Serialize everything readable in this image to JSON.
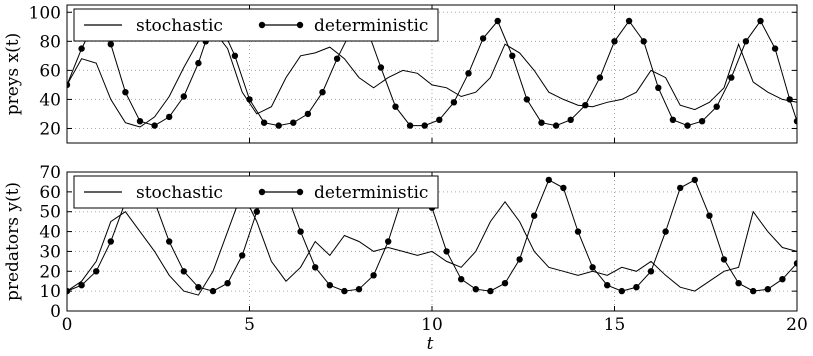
{
  "chart_data": [
    {
      "type": "line",
      "ylabel": "preys x(t)",
      "xlabel": "",
      "xlim": [
        0,
        20
      ],
      "ylim": [
        10,
        105
      ],
      "yticks": [
        20,
        40,
        60,
        80,
        100
      ],
      "xticks": [
        0,
        5,
        10,
        15,
        20
      ],
      "show_xtick_labels": false,
      "grid": "dotted",
      "legend": {
        "placement": "top",
        "entries": [
          "stochastic",
          "deterministic"
        ]
      },
      "series": [
        {
          "name": "stochastic",
          "marker": "none",
          "x": [
            0,
            0.4,
            0.8,
            1.2,
            1.6,
            2.0,
            2.4,
            2.8,
            3.2,
            3.6,
            4.0,
            4.4,
            4.8,
            5.2,
            5.6,
            6.0,
            6.4,
            6.8,
            7.2,
            7.6,
            8.0,
            8.4,
            8.8,
            9.2,
            9.6,
            10.0,
            10.4,
            10.8,
            11.2,
            11.6,
            12.0,
            12.4,
            12.8,
            13.2,
            13.6,
            14.0,
            14.4,
            14.8,
            15.2,
            15.6,
            16.0,
            16.4,
            16.8,
            17.2,
            17.6,
            18.0,
            18.4,
            18.8,
            19.2,
            19.6,
            20.0
          ],
          "values": [
            50,
            68,
            65,
            40,
            24,
            21,
            28,
            42,
            62,
            80,
            88,
            75,
            45,
            30,
            35,
            55,
            70,
            72,
            76,
            68,
            55,
            48,
            55,
            60,
            58,
            50,
            48,
            42,
            45,
            55,
            78,
            72,
            60,
            45,
            40,
            36,
            35,
            38,
            40,
            45,
            60,
            55,
            36,
            33,
            38,
            48,
            78,
            52,
            45,
            40,
            38
          ]
        },
        {
          "name": "deterministic",
          "marker": "circle",
          "x": [
            0,
            0.4,
            0.8,
            1.2,
            1.6,
            2.0,
            2.4,
            2.8,
            3.2,
            3.6,
            3.8,
            4.2,
            4.6,
            5.0,
            5.4,
            5.8,
            6.2,
            6.6,
            7.0,
            7.4,
            7.8,
            8.2,
            8.6,
            9.0,
            9.4,
            9.8,
            10.2,
            10.6,
            11.0,
            11.4,
            11.8,
            12.2,
            12.6,
            13.0,
            13.4,
            13.8,
            14.2,
            14.6,
            15.0,
            15.4,
            15.8,
            16.2,
            16.6,
            17.0,
            17.4,
            17.8,
            18.2,
            18.6,
            19.0,
            19.4,
            19.8,
            20.0
          ],
          "values": [
            50,
            75,
            95,
            78,
            45,
            25,
            22,
            28,
            42,
            65,
            80,
            92,
            70,
            40,
            24,
            22,
            24,
            30,
            45,
            68,
            88,
            90,
            62,
            35,
            22,
            22,
            26,
            38,
            58,
            82,
            94,
            70,
            40,
            24,
            22,
            26,
            36,
            55,
            80,
            94,
            80,
            48,
            26,
            22,
            25,
            35,
            55,
            80,
            94,
            75,
            40,
            25
          ]
        }
      ]
    },
    {
      "type": "line",
      "ylabel": "predators y(t)",
      "xlabel": "t",
      "xlim": [
        0,
        20
      ],
      "ylim": [
        0,
        70
      ],
      "yticks": [
        0,
        10,
        20,
        30,
        40,
        50,
        60,
        70
      ],
      "xticks": [
        0,
        5,
        10,
        15,
        20
      ],
      "show_xtick_labels": true,
      "grid": "dotted",
      "legend": {
        "placement": "top",
        "entries": [
          "stochastic",
          "deterministic"
        ]
      },
      "series": [
        {
          "name": "stochastic",
          "marker": "none",
          "x": [
            0,
            0.4,
            0.8,
            1.2,
            1.6,
            2.0,
            2.4,
            2.8,
            3.2,
            3.6,
            4.0,
            4.4,
            4.8,
            5.2,
            5.6,
            6.0,
            6.4,
            6.8,
            7.2,
            7.6,
            8.0,
            8.4,
            8.8,
            9.2,
            9.6,
            10.0,
            10.4,
            10.8,
            11.2,
            11.6,
            12.0,
            12.4,
            12.8,
            13.2,
            13.6,
            14.0,
            14.4,
            14.8,
            15.2,
            15.6,
            16.0,
            16.4,
            16.8,
            17.2,
            17.6,
            18.0,
            18.4,
            18.8,
            19.2,
            19.6,
            20.0
          ],
          "values": [
            10,
            15,
            25,
            45,
            50,
            40,
            30,
            18,
            10,
            8,
            20,
            40,
            60,
            45,
            25,
            15,
            22,
            35,
            28,
            38,
            35,
            30,
            32,
            30,
            28,
            30,
            25,
            22,
            30,
            45,
            55,
            45,
            30,
            22,
            20,
            18,
            20,
            18,
            22,
            20,
            25,
            18,
            12,
            10,
            15,
            20,
            22,
            50,
            40,
            32,
            30
          ]
        },
        {
          "name": "deterministic",
          "marker": "circle",
          "x": [
            0,
            0.4,
            0.8,
            1.2,
            1.6,
            2.0,
            2.4,
            2.8,
            3.2,
            3.6,
            4.0,
            4.4,
            4.8,
            5.2,
            5.6,
            6.0,
            6.4,
            6.8,
            7.2,
            7.6,
            8.0,
            8.4,
            8.8,
            9.2,
            9.6,
            10.0,
            10.4,
            10.8,
            11.2,
            11.6,
            12.0,
            12.4,
            12.8,
            13.2,
            13.6,
            14.0,
            14.4,
            14.8,
            15.2,
            15.6,
            16.0,
            16.4,
            16.8,
            17.2,
            17.6,
            18.0,
            18.4,
            18.8,
            19.2,
            19.6,
            20.0
          ],
          "values": [
            10,
            13,
            20,
            35,
            55,
            65,
            55,
            35,
            20,
            12,
            10,
            14,
            28,
            50,
            66,
            60,
            40,
            22,
            13,
            10,
            11,
            18,
            35,
            58,
            66,
            52,
            30,
            16,
            11,
            10,
            14,
            26,
            48,
            66,
            62,
            40,
            22,
            13,
            10,
            12,
            20,
            40,
            62,
            66,
            48,
            26,
            14,
            10,
            11,
            16,
            24
          ]
        }
      ]
    }
  ]
}
